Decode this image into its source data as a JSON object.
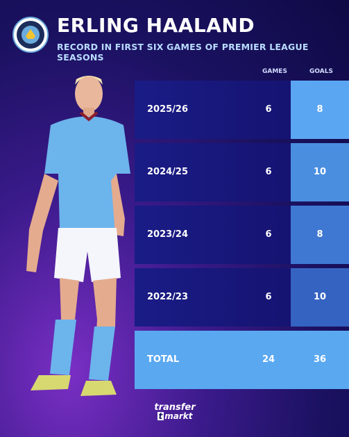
{
  "header": {
    "title": "ERLING HAALAND",
    "subtitle": "RECORD IN FIRST SIX GAMES OF PREMIER LEAGUE SEASONS"
  },
  "columns": {
    "games": "GAMES",
    "goals": "GOALS"
  },
  "rows": [
    {
      "season": "2025/26",
      "games": "6",
      "goals": "8",
      "goals_color": "#5ba6f3"
    },
    {
      "season": "2024/25",
      "games": "6",
      "goals": "10",
      "goals_color": "#4a8ee0"
    },
    {
      "season": "2023/24",
      "games": "6",
      "goals": "8",
      "goals_color": "#3f78d2"
    },
    {
      "season": "2022/23",
      "games": "6",
      "goals": "10",
      "goals_color": "#3563c1"
    }
  ],
  "total": {
    "label": "TOTAL",
    "games": "24",
    "goals": "36"
  },
  "colors": {
    "total_bg": "#5aa8f0",
    "row_bg": "#1a1c86"
  },
  "logo": {
    "line1": "transfer",
    "line2": "markt"
  }
}
